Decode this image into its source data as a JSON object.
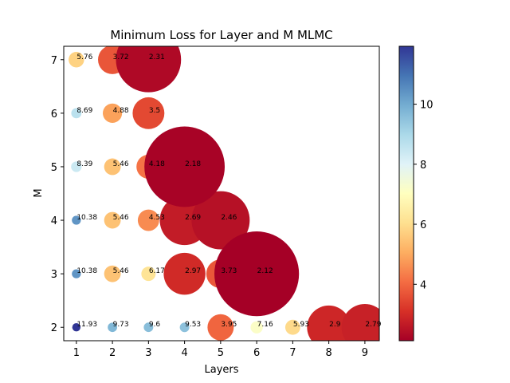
{
  "chart_data": {
    "type": "scatter",
    "title": "Minimum Loss for Layer and M MLMC",
    "xlabel": "Layers",
    "ylabel": "M",
    "xlim": [
      0.65,
      9.4
    ],
    "ylim": [
      1.75,
      7.25
    ],
    "xticks": [
      "1",
      "2",
      "3",
      "4",
      "5",
      "6",
      "7",
      "8",
      "9"
    ],
    "yticks": [
      "2",
      "3",
      "4",
      "5",
      "6",
      "7"
    ],
    "colormap": "RdYlBu",
    "colorbar": {
      "ticks": [
        "4",
        "6",
        "8",
        "10"
      ],
      "range": [
        2.12,
        11.93
      ]
    },
    "grid": false,
    "points": [
      {
        "x": 1,
        "y": 7,
        "value": 5.76,
        "label": "5.76"
      },
      {
        "x": 2,
        "y": 7,
        "value": 3.72,
        "label": "3.72"
      },
      {
        "x": 3,
        "y": 7,
        "value": 2.31,
        "label": "2.31"
      },
      {
        "x": 1,
        "y": 6,
        "value": 8.69,
        "label": "8.69"
      },
      {
        "x": 2,
        "y": 6,
        "value": 4.88,
        "label": "4.88"
      },
      {
        "x": 3,
        "y": 6,
        "value": 3.5,
        "label": "3.5"
      },
      {
        "x": 1,
        "y": 5,
        "value": 8.39,
        "label": "8.39"
      },
      {
        "x": 2,
        "y": 5,
        "value": 5.46,
        "label": "5.46"
      },
      {
        "x": 3,
        "y": 5,
        "value": 4.18,
        "label": "4.18"
      },
      {
        "x": 4,
        "y": 5,
        "value": 2.18,
        "label": "2.18"
      },
      {
        "x": 1,
        "y": 4,
        "value": 10.38,
        "label": "10.38"
      },
      {
        "x": 2,
        "y": 4,
        "value": 5.46,
        "label": "5.46"
      },
      {
        "x": 3,
        "y": 4,
        "value": 4.53,
        "label": "4.53"
      },
      {
        "x": 4,
        "y": 4,
        "value": 2.69,
        "label": "2.69"
      },
      {
        "x": 5,
        "y": 4,
        "value": 2.46,
        "label": "2.46"
      },
      {
        "x": 1,
        "y": 3,
        "value": 10.38,
        "label": "10.38"
      },
      {
        "x": 2,
        "y": 3,
        "value": 5.46,
        "label": "5.46"
      },
      {
        "x": 3,
        "y": 3,
        "value": 6.17,
        "label": "6.17"
      },
      {
        "x": 4,
        "y": 3,
        "value": 2.97,
        "label": "2.97"
      },
      {
        "x": 5,
        "y": 3,
        "value": 3.73,
        "label": "3.73"
      },
      {
        "x": 6,
        "y": 3,
        "value": 2.12,
        "label": "2.12"
      },
      {
        "x": 1,
        "y": 2,
        "value": 11.93,
        "label": "11.93"
      },
      {
        "x": 2,
        "y": 2,
        "value": 9.73,
        "label": "9.73"
      },
      {
        "x": 3,
        "y": 2,
        "value": 9.6,
        "label": "9.6"
      },
      {
        "x": 4,
        "y": 2,
        "value": 9.53,
        "label": "9.53"
      },
      {
        "x": 5,
        "y": 2,
        "value": 3.95,
        "label": "3.95"
      },
      {
        "x": 6,
        "y": 2,
        "value": 7.16,
        "label": "7.16"
      },
      {
        "x": 7,
        "y": 2,
        "value": 5.93,
        "label": "5.93"
      },
      {
        "x": 8,
        "y": 2,
        "value": 2.9,
        "label": "2.9"
      },
      {
        "x": 9,
        "y": 2,
        "value": 2.79,
        "label": "2.79"
      }
    ]
  }
}
